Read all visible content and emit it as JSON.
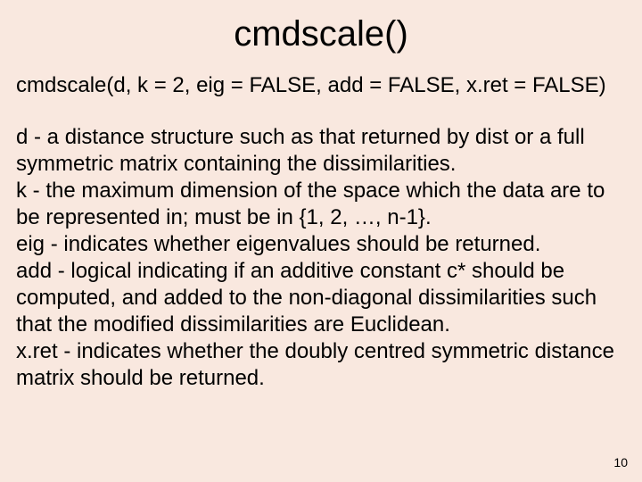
{
  "slide": {
    "title": "cmdscale()",
    "signature": "cmdscale(d, k = 2, eig = FALSE, add = FALSE, x.ret = FALSE)",
    "body": "d - a distance structure such as that returned by dist or a full symmetric matrix containing the dissimilarities.\nk - the maximum dimension of the space which the data are to be represented in; must be in {1, 2, …, n-1}.\neig - indicates whether eigenvalues should be returned.\nadd - logical indicating if an additive constant c* should be computed, and added to the non-diagonal dissimilarities such that the modified dissimilarities are Euclidean.\nx.ret - indicates whether the doubly centred symmetric distance matrix should be returned.",
    "page_number": "10",
    "background_color": "#f9e8df",
    "text_color": "#000000",
    "title_fontsize": 40,
    "body_fontsize": 24,
    "font_family": "Arial"
  }
}
